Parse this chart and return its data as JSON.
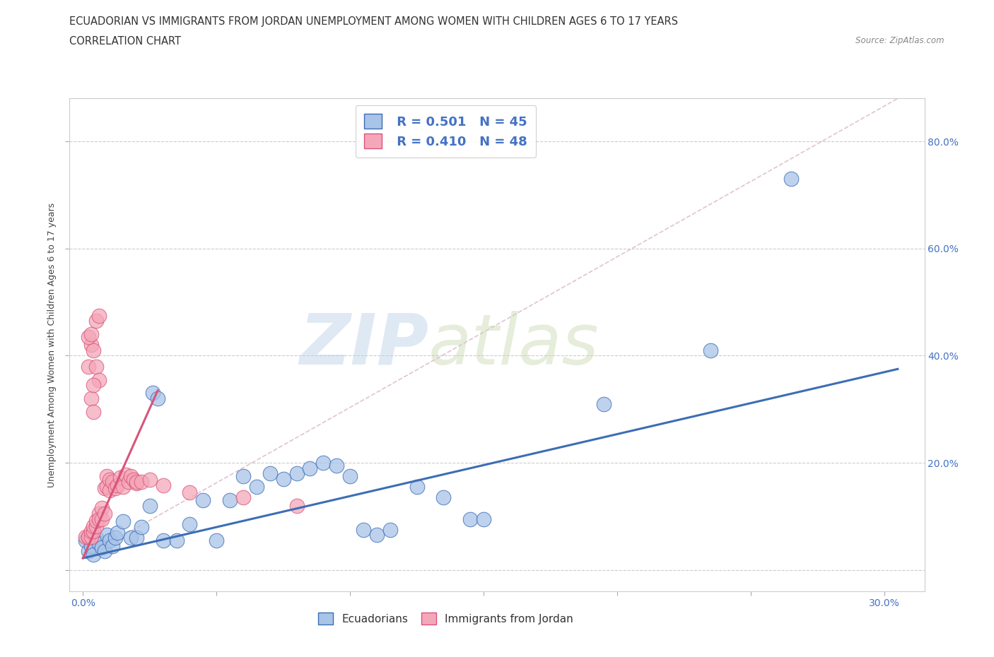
{
  "title_line1": "ECUADORIAN VS IMMIGRANTS FROM JORDAN UNEMPLOYMENT AMONG WOMEN WITH CHILDREN AGES 6 TO 17 YEARS",
  "title_line2": "CORRELATION CHART",
  "source": "Source: ZipAtlas.com",
  "ylabel": "Unemployment Among Women with Children Ages 6 to 17 years",
  "xlim": [
    -0.005,
    0.315
  ],
  "ylim": [
    -0.04,
    0.88
  ],
  "x_ticks": [
    0.0,
    0.05,
    0.1,
    0.15,
    0.2,
    0.25,
    0.3
  ],
  "x_tick_labels_show": [
    "0.0%",
    "30.0%"
  ],
  "y_ticks": [
    0.0,
    0.2,
    0.4,
    0.6,
    0.8
  ],
  "y_tick_labels": [
    "",
    "20.0%",
    "40.0%",
    "60.0%",
    "80.0%"
  ],
  "watermark_zip": "ZIP",
  "watermark_atlas": "atlas",
  "legend_r1": "R = 0.501",
  "legend_n1": "N = 45",
  "legend_r2": "R = 0.410",
  "legend_n2": "N = 48",
  "color_blue": "#a8c4e8",
  "color_pink": "#f4a7b9",
  "color_blue_dark": "#3d6db5",
  "color_pink_dark": "#d9547a",
  "grid_color": "#cccccc",
  "background_color": "#ffffff",
  "title_fontsize": 10.5,
  "axis_label_fontsize": 9,
  "tick_fontsize": 10,
  "blue_trendline_x": [
    0.0,
    0.305
  ],
  "blue_trendline_y": [
    0.022,
    0.375
  ],
  "pink_trendline_x": [
    0.0,
    0.028
  ],
  "pink_trendline_y": [
    0.022,
    0.335
  ],
  "dashed_line_x": [
    0.0,
    0.305
  ],
  "dashed_line_y": [
    0.022,
    0.88
  ],
  "blue_points": [
    [
      0.001,
      0.055
    ],
    [
      0.002,
      0.035
    ],
    [
      0.003,
      0.045
    ],
    [
      0.004,
      0.028
    ],
    [
      0.005,
      0.06
    ],
    [
      0.006,
      0.05
    ],
    [
      0.007,
      0.042
    ],
    [
      0.008,
      0.035
    ],
    [
      0.009,
      0.065
    ],
    [
      0.01,
      0.055
    ],
    [
      0.011,
      0.045
    ],
    [
      0.012,
      0.06
    ],
    [
      0.013,
      0.07
    ],
    [
      0.015,
      0.09
    ],
    [
      0.018,
      0.06
    ],
    [
      0.02,
      0.06
    ],
    [
      0.022,
      0.08
    ],
    [
      0.025,
      0.12
    ],
    [
      0.026,
      0.33
    ],
    [
      0.028,
      0.32
    ],
    [
      0.03,
      0.055
    ],
    [
      0.035,
      0.055
    ],
    [
      0.04,
      0.085
    ],
    [
      0.045,
      0.13
    ],
    [
      0.05,
      0.055
    ],
    [
      0.055,
      0.13
    ],
    [
      0.06,
      0.175
    ],
    [
      0.065,
      0.155
    ],
    [
      0.07,
      0.18
    ],
    [
      0.075,
      0.17
    ],
    [
      0.08,
      0.18
    ],
    [
      0.085,
      0.19
    ],
    [
      0.09,
      0.2
    ],
    [
      0.095,
      0.195
    ],
    [
      0.1,
      0.175
    ],
    [
      0.105,
      0.075
    ],
    [
      0.11,
      0.065
    ],
    [
      0.115,
      0.075
    ],
    [
      0.125,
      0.155
    ],
    [
      0.135,
      0.135
    ],
    [
      0.145,
      0.095
    ],
    [
      0.15,
      0.095
    ],
    [
      0.195,
      0.31
    ],
    [
      0.235,
      0.41
    ],
    [
      0.265,
      0.73
    ]
  ],
  "pink_points": [
    [
      0.001,
      0.062
    ],
    [
      0.002,
      0.062
    ],
    [
      0.002,
      0.062
    ],
    [
      0.003,
      0.062
    ],
    [
      0.003,
      0.072
    ],
    [
      0.004,
      0.072
    ],
    [
      0.004,
      0.082
    ],
    [
      0.005,
      0.082
    ],
    [
      0.005,
      0.092
    ],
    [
      0.006,
      0.105
    ],
    [
      0.006,
      0.095
    ],
    [
      0.007,
      0.115
    ],
    [
      0.007,
      0.095
    ],
    [
      0.008,
      0.105
    ],
    [
      0.008,
      0.152
    ],
    [
      0.009,
      0.175
    ],
    [
      0.009,
      0.155
    ],
    [
      0.01,
      0.168
    ],
    [
      0.01,
      0.148
    ],
    [
      0.011,
      0.165
    ],
    [
      0.012,
      0.152
    ],
    [
      0.013,
      0.158
    ],
    [
      0.014,
      0.172
    ],
    [
      0.015,
      0.155
    ],
    [
      0.016,
      0.178
    ],
    [
      0.017,
      0.165
    ],
    [
      0.018,
      0.175
    ],
    [
      0.019,
      0.168
    ],
    [
      0.02,
      0.162
    ],
    [
      0.02,
      0.165
    ],
    [
      0.002,
      0.38
    ],
    [
      0.003,
      0.42
    ],
    [
      0.004,
      0.41
    ],
    [
      0.003,
      0.32
    ],
    [
      0.004,
      0.295
    ],
    [
      0.005,
      0.38
    ],
    [
      0.002,
      0.435
    ],
    [
      0.003,
      0.44
    ],
    [
      0.006,
      0.355
    ],
    [
      0.004,
      0.345
    ],
    [
      0.005,
      0.465
    ],
    [
      0.006,
      0.475
    ],
    [
      0.022,
      0.165
    ],
    [
      0.025,
      0.168
    ],
    [
      0.03,
      0.158
    ],
    [
      0.04,
      0.145
    ],
    [
      0.06,
      0.135
    ],
    [
      0.08,
      0.12
    ]
  ]
}
